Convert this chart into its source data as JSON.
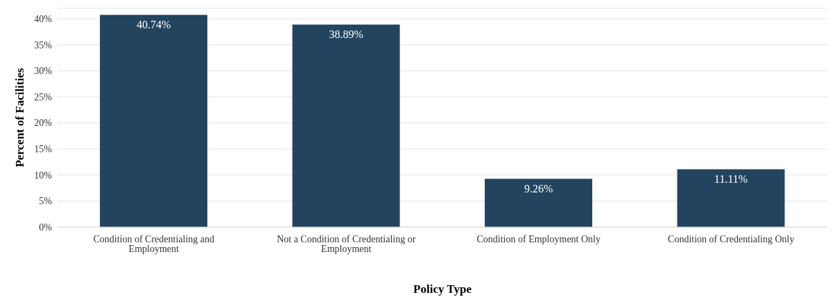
{
  "chart_data": {
    "type": "bar",
    "xlabel": "Policy Type",
    "ylabel": "Percent of Facilities",
    "categories": [
      "Condition of Credentialing and Employment",
      "Not a Condition of Credentialing or Employment",
      "Condition of Employment Only",
      "Condition of Credentialing Only"
    ],
    "values": [
      40.74,
      38.89,
      9.26,
      11.11
    ],
    "color": "#23445f",
    "value_labels": [
      "40.74%",
      "38.89%",
      "9.26%",
      "11.11%"
    ],
    "ylim": [
      0,
      42
    ],
    "yticks": [
      {
        "value": 0,
        "label": "0%"
      },
      {
        "value": 5,
        "label": "5%"
      },
      {
        "value": 10,
        "label": "10%"
      },
      {
        "value": 15,
        "label": "15%"
      },
      {
        "value": 20,
        "label": "20%"
      },
      {
        "value": 25,
        "label": "25%"
      },
      {
        "value": 30,
        "label": "30%"
      },
      {
        "value": 35,
        "label": "35%"
      },
      {
        "value": 40,
        "label": "40%"
      }
    ],
    "grid": "y",
    "legend": false
  }
}
